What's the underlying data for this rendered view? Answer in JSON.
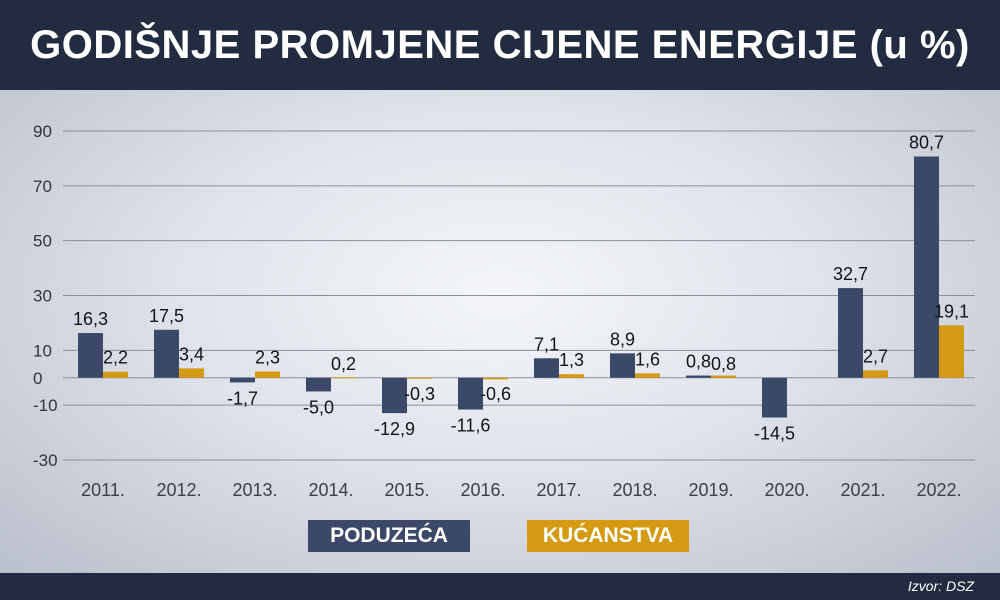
{
  "title": "GODIŠNJE PROMJENE CIJENE ENERGIJE (u %)",
  "source": "Izvor: DSZ",
  "legend": {
    "series1": "PODUZEĆA",
    "series2": "KUĆANSTVA"
  },
  "colors": {
    "header_bg": "#222b3f",
    "series1": "#3b4868",
    "series2": "#d49a12"
  },
  "chart_data": {
    "type": "bar",
    "title": "GODIŠNJE PROMJENE CIJENE ENERGIJE (u %)",
    "xlabel": "",
    "ylabel": "",
    "ylim": [
      -30,
      90
    ],
    "y_ticks": [
      "90",
      "70",
      "50",
      "30",
      "10",
      "0",
      "-10",
      "-30"
    ],
    "y_tick_values": [
      90,
      70,
      50,
      30,
      10,
      0,
      -10,
      -30
    ],
    "grid": true,
    "legend_position": "bottom-center",
    "categories": [
      "2011.",
      "2012.",
      "2013.",
      "2014.",
      "2015.",
      "2016.",
      "2017.",
      "2018.",
      "2019.",
      "2020.",
      "2021.",
      "2022."
    ],
    "series": [
      {
        "name": "PODUZEĆA",
        "values": [
          16.3,
          17.5,
          -1.7,
          -5.0,
          -12.9,
          -11.6,
          7.1,
          8.9,
          0.8,
          -14.5,
          32.7,
          80.7
        ],
        "labels": [
          "16,3",
          "17,5",
          "-1,7",
          "-5,0",
          "-12,9",
          "-11,6",
          "7,1",
          "8,9",
          "0,8",
          "-14,5",
          "32,7",
          "80,7"
        ]
      },
      {
        "name": "KUĆANSTVA",
        "values": [
          2.2,
          3.4,
          2.3,
          0.2,
          -0.3,
          -0.6,
          1.3,
          1.6,
          0.8,
          null,
          2.7,
          19.1
        ],
        "labels": [
          "2,2",
          "3,4",
          "2,3",
          "0,2",
          "-0,3",
          "-0,6",
          "1,3",
          "1,6",
          "0,8",
          "",
          "2,7",
          "19,1"
        ]
      }
    ]
  }
}
